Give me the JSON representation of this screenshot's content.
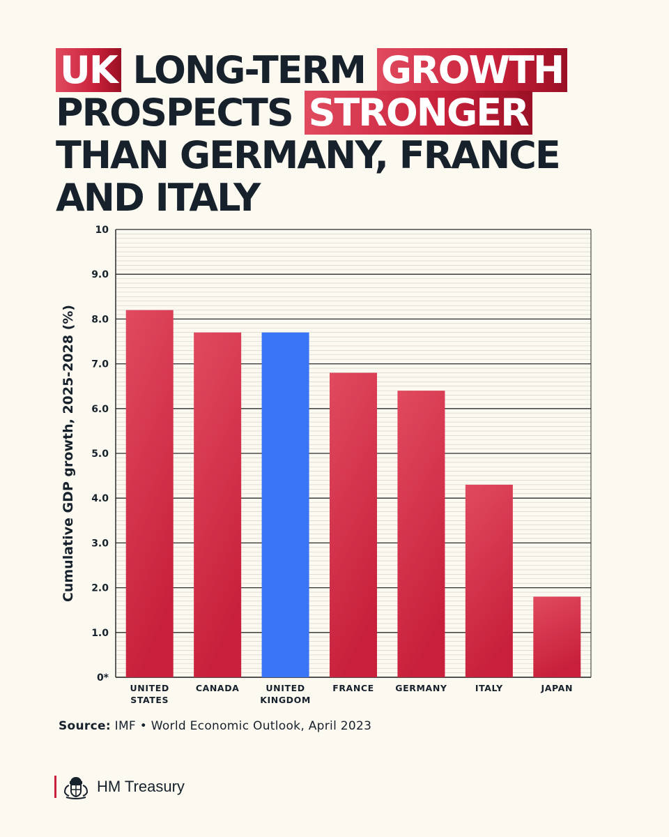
{
  "title": {
    "part1": "UK",
    "part2": " LONG-TERM ",
    "part3": "GROWTH",
    "part4": " PROSPECTS ",
    "part5": "STRONGER",
    "part6": " THAN GERMANY, FRANCE AND ITALY"
  },
  "source": {
    "label": "Source:",
    "text": " IMF • World Economic Outlook, April 2023"
  },
  "footer": {
    "org": "HM Treasury",
    "logo_icon": "royal-crest-icon"
  },
  "colors": {
    "bar_default_top": "#e04a5f",
    "bar_default_bottom": "#c8203c",
    "bar_highlight": "#3a75f7",
    "text": "#17212b",
    "background": "#fbf9f0"
  },
  "chart_data": {
    "type": "bar",
    "ylabel": "Cumulative GDP growth, 2025-2028 (%)",
    "ylim": [
      0,
      10
    ],
    "grid": true,
    "yticks": [
      {
        "value": 0,
        "label": "0*"
      },
      {
        "value": 1,
        "label": "1.0"
      },
      {
        "value": 2,
        "label": "2.0"
      },
      {
        "value": 3,
        "label": "3.0"
      },
      {
        "value": 4,
        "label": "4.0"
      },
      {
        "value": 5,
        "label": "5.0"
      },
      {
        "value": 6,
        "label": "6.0"
      },
      {
        "value": 7,
        "label": "7.0"
      },
      {
        "value": 8,
        "label": "8.0"
      },
      {
        "value": 9,
        "label": "9.0"
      },
      {
        "value": 10,
        "label": "10"
      }
    ],
    "categories": [
      [
        "UNITED",
        "STATES"
      ],
      [
        "CANADA"
      ],
      [
        "UNITED",
        "KINGDOM"
      ],
      [
        "FRANCE"
      ],
      [
        "GERMANY"
      ],
      [
        "ITALY"
      ],
      [
        "JAPAN"
      ]
    ],
    "values": [
      8.2,
      7.7,
      7.7,
      6.8,
      6.4,
      4.3,
      1.8
    ],
    "highlight_index": 2
  }
}
